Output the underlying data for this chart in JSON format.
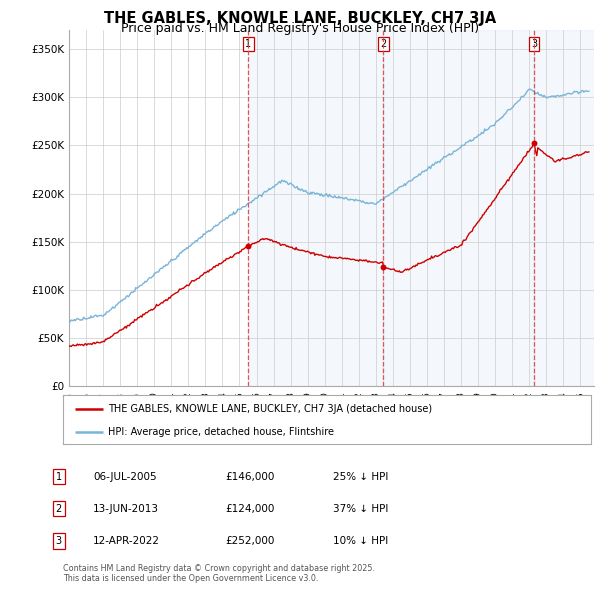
{
  "title": "THE GABLES, KNOWLE LANE, BUCKLEY, CH7 3JA",
  "subtitle": "Price paid vs. HM Land Registry's House Price Index (HPI)",
  "ylim": [
    0,
    370000
  ],
  "xlim_start": 1995.0,
  "xlim_end": 2025.8,
  "hpi_color": "#7ab4d8",
  "hpi_fill_color": "#ddeeff",
  "price_color": "#cc0000",
  "vline_color": "#dd4444",
  "transaction_dates": [
    2005.52,
    2013.45,
    2022.28
  ],
  "transaction_numbers": [
    "1",
    "2",
    "3"
  ],
  "transaction_prices": [
    146000,
    124000,
    252000
  ],
  "transaction_labels": [
    "06-JUL-2005",
    "13-JUN-2013",
    "12-APR-2022"
  ],
  "transaction_hpi_pct": [
    "25% ↓ HPI",
    "37% ↓ HPI",
    "10% ↓ HPI"
  ],
  "legend_house_label": "THE GABLES, KNOWLE LANE, BUCKLEY, CH7 3JA (detached house)",
  "legend_hpi_label": "HPI: Average price, detached house, Flintshire",
  "footnote": "Contains HM Land Registry data © Crown copyright and database right 2025.\nThis data is licensed under the Open Government Licence v3.0.",
  "title_fontsize": 10.5,
  "subtitle_fontsize": 9,
  "background_color": "#ffffff",
  "grid_color": "#cccccc"
}
